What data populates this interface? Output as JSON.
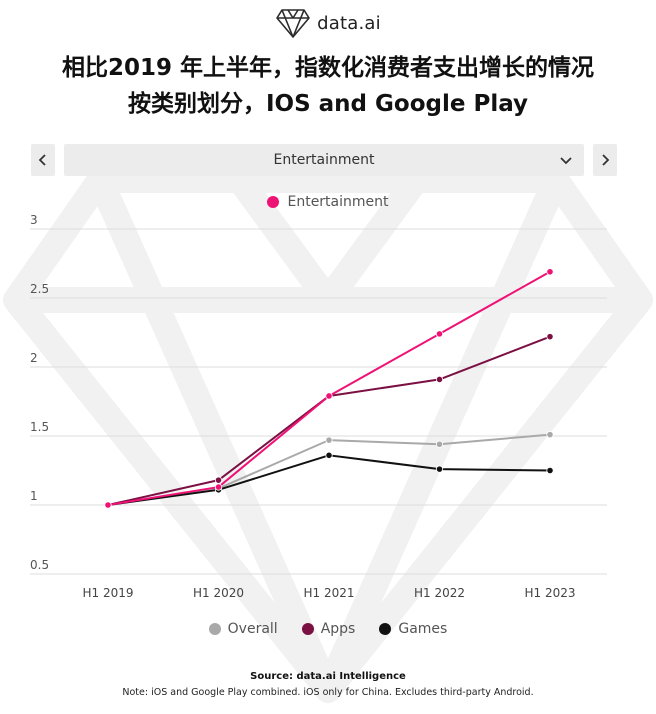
{
  "brand": {
    "name": "data.ai"
  },
  "title_line1": "相比2019 年上半年，指数化消费者支出增长的情况",
  "title_line2": "按类别划分，IOS and Google Play",
  "selector": {
    "value": "Entertainment",
    "prev_icon": "chevron-left-icon",
    "next_icon": "chevron-right-icon"
  },
  "source": "Source: data.ai Intelligence",
  "note": "Note: iOS and Google Play combined. iOS only for China. Excludes third-party Android.",
  "chart_data": {
    "type": "line",
    "categories": [
      "H1 2019",
      "H1 2020",
      "H1 2021",
      "H1 2022",
      "H1 2023"
    ],
    "ylim": [
      0.5,
      3
    ],
    "yticks": [
      "0.5",
      "1",
      "1.5",
      "2",
      "2.5",
      "3"
    ],
    "grid": true,
    "series": [
      {
        "name": "Overall",
        "color": "#a9a9a9",
        "values": [
          1.0,
          1.12,
          1.47,
          1.44,
          1.51
        ]
      },
      {
        "name": "Apps",
        "color": "#7a1043",
        "values": [
          1.0,
          1.18,
          1.79,
          1.91,
          2.22
        ]
      },
      {
        "name": "Games",
        "color": "#111111",
        "values": [
          1.0,
          1.11,
          1.36,
          1.26,
          1.25
        ]
      },
      {
        "name": "Entertainment",
        "color": "#ef1275",
        "values": [
          1.0,
          1.13,
          1.79,
          2.24,
          2.69
        ]
      }
    ],
    "legend_top": [
      "Entertainment"
    ],
    "legend_bottom": [
      "Overall",
      "Apps",
      "Games"
    ]
  }
}
